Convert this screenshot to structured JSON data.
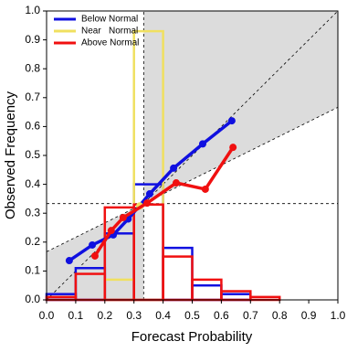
{
  "chart_data": {
    "type": "reliability",
    "xlabel": "Forecast Probability",
    "ylabel": "Observed Frequency",
    "xlim": [
      0,
      1
    ],
    "ylim": [
      0,
      1
    ],
    "xticks": [
      {
        "value": 0,
        "label": "0.0"
      },
      0.1,
      0.2,
      0.3,
      0.4,
      0.5,
      0.6,
      0.7,
      0.8,
      0.9,
      {
        "value": 1,
        "label": "1.0"
      }
    ],
    "yticks": [
      {
        "value": 0,
        "label": "0.0"
      },
      0.1,
      0.2,
      0.3,
      0.4,
      0.5,
      0.6,
      0.7,
      0.8,
      0.9,
      {
        "value": 1,
        "label": "1.0"
      }
    ],
    "climatology": 0.3333,
    "legend": "upper left",
    "series": [
      {
        "name": "Below Normal",
        "color": "#1010e0",
        "x": [
          0.078,
          0.157,
          0.229,
          0.28,
          0.354,
          0.436,
          0.536,
          0.636
        ],
        "values": [
          0.136,
          0.19,
          0.225,
          0.28,
          0.367,
          0.456,
          0.54,
          0.62
        ],
        "histogram": {
          "bins": [
            0,
            0.1,
            0.2,
            0.3,
            0.4,
            0.5,
            0.6,
            0.7
          ],
          "counts": [
            0.02,
            0.11,
            0.23,
            0.4,
            0.18,
            0.05,
            0.02
          ]
        }
      },
      {
        "name": "Near   Normal",
        "color": "#f0e060",
        "x": [
          0.32
        ],
        "values": [
          0.325
        ],
        "histogram": {
          "bins": [
            0.2,
            0.3,
            0.4
          ],
          "counts": [
            0.07,
            0.93
          ]
        }
      },
      {
        "name": "Above Normal",
        "color": "#f01010",
        "x": [
          0.166,
          0.222,
          0.263,
          0.345,
          0.445,
          0.545,
          0.64
        ],
        "values": [
          0.152,
          0.24,
          0.285,
          0.335,
          0.405,
          0.383,
          0.528
        ],
        "histogram": {
          "bins": [
            0,
            0.1,
            0.2,
            0.3,
            0.4,
            0.5,
            0.6,
            0.7,
            0.8
          ],
          "counts": [
            0.01,
            0.09,
            0.32,
            0.33,
            0.15,
            0.07,
            0.03,
            0.01
          ]
        }
      }
    ]
  }
}
